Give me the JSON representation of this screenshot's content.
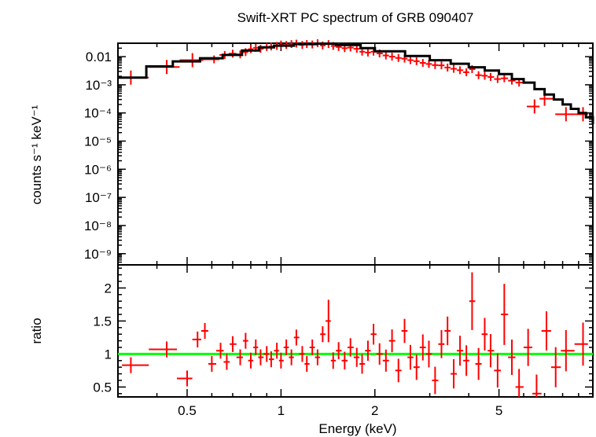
{
  "colors": {
    "data": "#ff0000",
    "model": "#000000",
    "unity_line": "#00ff00",
    "frame": "#000000"
  },
  "chart_data": [
    {
      "type": "scatter",
      "title": "Swift-XRT PC spectrum of GRB 090407",
      "xlabel": "",
      "ylabel": "counts s⁻¹ keV⁻¹",
      "xscale": "log",
      "yscale": "log",
      "xlim": [
        0.3,
        10
      ],
      "ylim": [
        4e-10,
        0.03
      ],
      "grid": false,
      "y_tick_labels": [
        "0.01",
        "10⁻³",
        "10⁻⁴",
        "10⁻⁵",
        "10⁻⁶",
        "10⁻⁷",
        "10⁻⁸",
        "10⁻⁹"
      ],
      "y_tick_values": [
        0.01,
        0.001,
        0.0001,
        1e-05,
        1e-06,
        1e-07,
        1e-08,
        1e-09
      ],
      "series": [
        {
          "kind": "data",
          "x": [
            0.33,
            0.43,
            0.52,
            0.61,
            0.66,
            0.7,
            0.74,
            0.77,
            0.8,
            0.83,
            0.86,
            0.9,
            0.93,
            0.97,
            1.0,
            1.04,
            1.08,
            1.12,
            1.17,
            1.21,
            1.26,
            1.31,
            1.36,
            1.42,
            1.47,
            1.53,
            1.6,
            1.67,
            1.75,
            1.82,
            1.9,
            1.98,
            2.07,
            2.17,
            2.27,
            2.38,
            2.49,
            2.6,
            2.72,
            2.85,
            2.98,
            3.12,
            3.27,
            3.42,
            3.58,
            3.75,
            3.93,
            4.1,
            4.3,
            4.5,
            4.7,
            4.95,
            5.2,
            5.5,
            5.8,
            6.5,
            7.0,
            8.2,
            9.3
          ],
          "y": [
            0.0018,
            0.0043,
            0.0075,
            0.008,
            0.0115,
            0.0128,
            0.012,
            0.0145,
            0.0185,
            0.0205,
            0.019,
            0.022,
            0.023,
            0.024,
            0.027,
            0.026,
            0.028,
            0.029,
            0.026,
            0.028,
            0.027,
            0.03,
            0.025,
            0.028,
            0.024,
            0.022,
            0.02,
            0.021,
            0.019,
            0.015,
            0.014,
            0.015,
            0.013,
            0.011,
            0.01,
            0.009,
            0.0085,
            0.0075,
            0.0069,
            0.006,
            0.0055,
            0.005,
            0.0049,
            0.0041,
            0.0037,
            0.0033,
            0.0028,
            0.0036,
            0.0022,
            0.0021,
            0.0019,
            0.0016,
            0.0017,
            0.0014,
            0.0012,
            0.00017,
            0.00032,
            9e-05,
            9e-05
          ]
        },
        {
          "kind": "model",
          "x": [
            0.3,
            0.37,
            0.45,
            0.55,
            0.65,
            0.75,
            0.85,
            0.95,
            1.1,
            1.3,
            1.5,
            1.8,
            2.0,
            2.5,
            3.0,
            3.5,
            4.0,
            4.5,
            5.0,
            5.5,
            6.0,
            6.5,
            7.0,
            7.5,
            8.0,
            8.5,
            9.0,
            9.5,
            10.0
          ],
          "y": [
            0.0018,
            0.0045,
            0.0068,
            0.0088,
            0.0115,
            0.0165,
            0.0215,
            0.0245,
            0.028,
            0.029,
            0.026,
            0.02,
            0.0155,
            0.0105,
            0.0075,
            0.0056,
            0.0042,
            0.0032,
            0.0024,
            0.0016,
            0.0012,
            0.0007,
            0.00045,
            0.0003,
            0.0002,
            0.00014,
            0.0001,
            7e-05,
            4e-05
          ]
        }
      ]
    },
    {
      "type": "scatter",
      "title": "",
      "xlabel": "Energy (keV)",
      "ylabel": "ratio",
      "xscale": "log",
      "xlim": [
        0.3,
        10
      ],
      "ylim": [
        0.35,
        2.35
      ],
      "grid": false,
      "x_tick_labels": [
        "0.5",
        "1",
        "2",
        "5"
      ],
      "x_tick_values": [
        0.5,
        1,
        2,
        5
      ],
      "y_tick_labels": [
        "0.5",
        "1",
        "1.5",
        "2"
      ],
      "y_tick_values": [
        0.5,
        1,
        1.5,
        2
      ],
      "reference_line": 1,
      "series": [
        {
          "kind": "data",
          "x": [
            0.33,
            0.43,
            0.5,
            0.54,
            0.57,
            0.6,
            0.64,
            0.67,
            0.7,
            0.74,
            0.77,
            0.8,
            0.83,
            0.86,
            0.9,
            0.93,
            0.97,
            1.0,
            1.04,
            1.08,
            1.12,
            1.17,
            1.21,
            1.26,
            1.31,
            1.36,
            1.42,
            1.47,
            1.53,
            1.6,
            1.67,
            1.75,
            1.82,
            1.9,
            1.98,
            2.07,
            2.17,
            2.27,
            2.38,
            2.49,
            2.6,
            2.72,
            2.85,
            2.98,
            3.12,
            3.27,
            3.42,
            3.58,
            3.75,
            3.93,
            4.1,
            4.3,
            4.5,
            4.7,
            4.95,
            5.2,
            5.5,
            5.8,
            6.2,
            6.6,
            7.1,
            7.6,
            8.2,
            9.3
          ],
          "y": [
            0.83,
            1.07,
            0.63,
            1.22,
            1.35,
            0.85,
            1.05,
            0.88,
            1.15,
            0.95,
            1.2,
            0.9,
            1.1,
            0.95,
            1.0,
            0.92,
            1.05,
            0.9,
            1.1,
            0.95,
            1.25,
            1.0,
            0.85,
            1.1,
            0.95,
            1.3,
            1.5,
            0.9,
            1.05,
            0.9,
            1.1,
            0.95,
            0.85,
            1.05,
            1.3,
            1.0,
            0.9,
            1.2,
            0.75,
            1.35,
            0.95,
            0.8,
            1.1,
            1.0,
            0.6,
            1.15,
            1.35,
            0.7,
            1.05,
            0.9,
            1.8,
            0.85,
            1.3,
            1.05,
            0.75,
            1.6,
            0.95,
            0.5,
            1.1,
            0.4,
            1.35,
            0.8,
            1.05,
            1.15
          ]
        }
      ]
    }
  ]
}
